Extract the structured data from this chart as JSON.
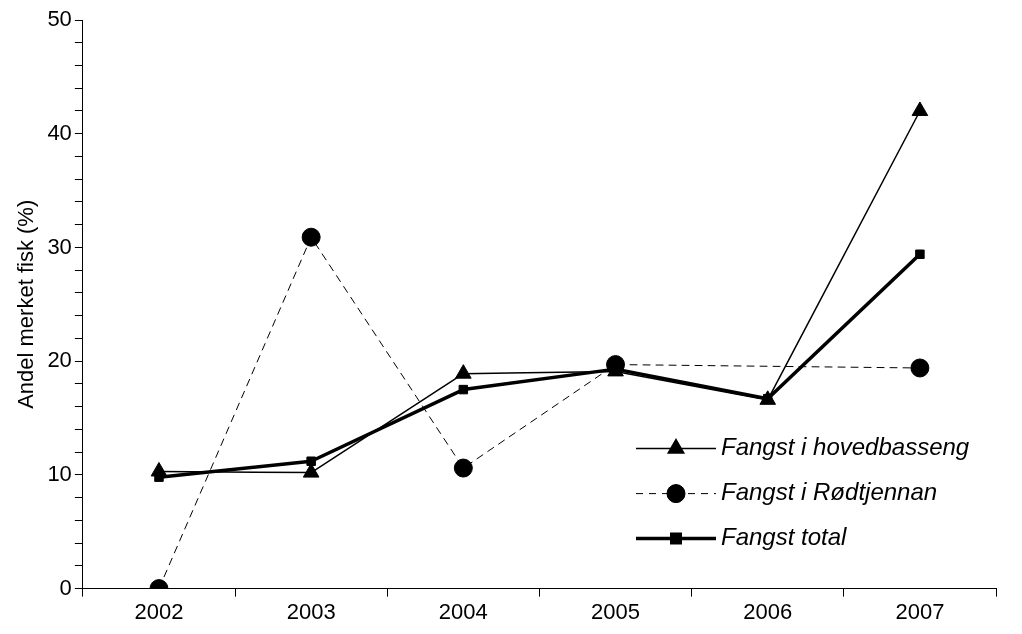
{
  "chart_data": {
    "type": "line",
    "ylabel": "Andel merket fisk (%)",
    "categories": [
      "2002",
      "2003",
      "2004",
      "2005",
      "2006",
      "2007"
    ],
    "series": [
      {
        "name": "Fangst i hovedbasseng",
        "color": "#000000",
        "marker": "triangle",
        "line_style": "solid",
        "values": [
          10.3,
          10.2,
          18.9,
          19.1,
          16.6,
          42.0
        ]
      },
      {
        "name": "Fangst i Rødtjennan",
        "color": "#000000",
        "marker": "circle",
        "line_style": "dashed",
        "values": [
          0,
          30.9,
          10.6,
          19.7,
          null,
          19.4
        ]
      },
      {
        "name": "Fangst total",
        "color": "#000000",
        "marker": "square",
        "line_style": "solid",
        "values": [
          9.8,
          11.2,
          17.5,
          19.3,
          16.7,
          29.4
        ]
      }
    ],
    "ylim": [
      0,
      50
    ],
    "yticks": [
      0,
      {
        "value": 2,
        "label": null
      },
      {
        "value": 4,
        "label": null
      },
      {
        "value": 6,
        "label": null
      },
      {
        "value": 8,
        "label": null
      },
      10,
      {
        "value": 12,
        "label": null
      },
      {
        "value": 14,
        "label": null
      },
      {
        "value": 16,
        "label": null
      },
      {
        "value": 18,
        "label": null
      },
      20,
      {
        "value": 22,
        "label": null
      },
      {
        "value": 24,
        "label": null
      },
      {
        "value": 26,
        "label": null
      },
      {
        "value": 28,
        "label": null
      },
      30,
      {
        "value": 32,
        "label": null
      },
      {
        "value": 34,
        "label": null
      },
      {
        "value": 36,
        "label": null
      },
      {
        "value": 38,
        "label": null
      },
      40,
      {
        "value": 42,
        "label": null
      },
      {
        "value": 44,
        "label": null
      },
      {
        "value": 46,
        "label": null
      },
      {
        "value": 48,
        "label": null
      },
      50
    ],
    "grid": false,
    "legend": "bottom right"
  }
}
